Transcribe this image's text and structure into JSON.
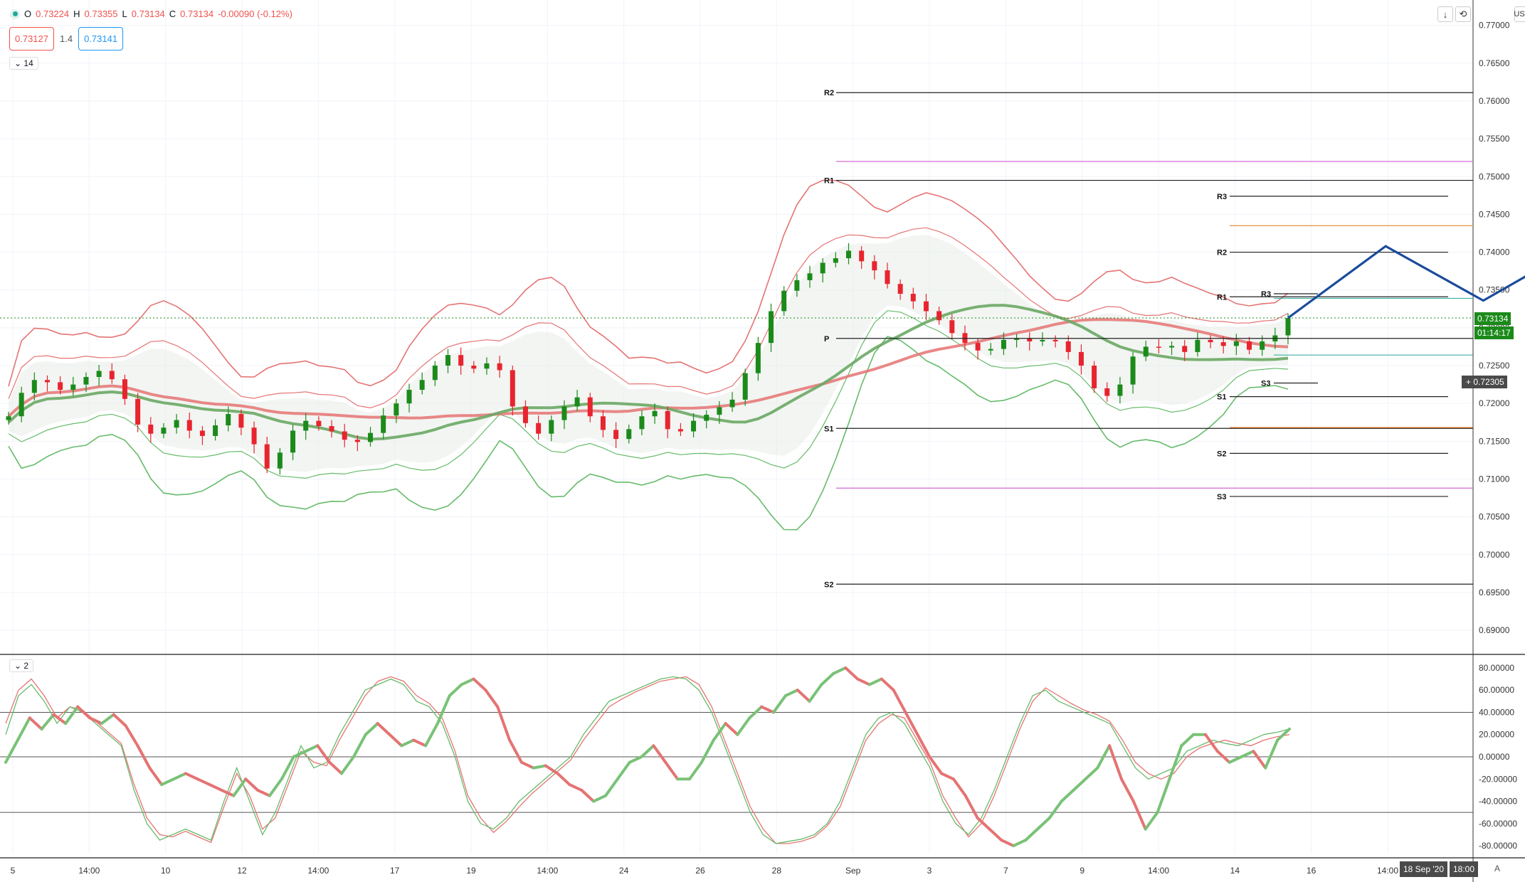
{
  "header": {
    "symbol_dot": "status-dot",
    "open_label": "O",
    "open": "0.73224",
    "high_label": "H",
    "high": "0.73355",
    "low_label": "L",
    "low": "0.73134",
    "close_label": "C",
    "close": "0.73134",
    "change": "-0.00090 (-0.12%)",
    "sell_price": "0.73127",
    "spread": "1.4",
    "buy_price": "0.73141",
    "main_collapse_label": "14",
    "osc_collapse_label": "2",
    "currency": "USD"
  },
  "price_labels": {
    "last_price": "0.73134",
    "countdown": "01:14:17",
    "crosshair_price": "0.72305"
  },
  "bottom_tags": {
    "date": "18 Sep '20",
    "time": "18:00",
    "auto": "A"
  },
  "colors": {
    "up": "#1b8a1b",
    "down": "#e8242f",
    "band_red": "#e57373",
    "band_green": "#66bb6a",
    "ma_red": "#e57373",
    "ma_green": "#6aa964",
    "projection": "#1a4b9c"
  },
  "chart_data": {
    "type": "candlestick",
    "price_axis": {
      "min": 0.687,
      "max": 0.771,
      "ticks": [
        "0.77000",
        "0.76500",
        "0.76000",
        "0.75500",
        "0.75000",
        "0.74500",
        "0.74000",
        "0.73500",
        "0.73000",
        "0.72500",
        "0.72000",
        "0.71500",
        "0.71000",
        "0.70500",
        "0.70000",
        "0.69500",
        "0.69000"
      ]
    },
    "time_axis": {
      "labels": [
        "5",
        "14:00",
        "10",
        "12",
        "14:00",
        "17",
        "19",
        "14:00",
        "24",
        "26",
        "28",
        "Sep",
        "3",
        "7",
        "9",
        "14:00",
        "14",
        "16",
        "14:00"
      ]
    },
    "close_path": [
      0.7183,
      0.7214,
      0.7231,
      0.7228,
      0.7218,
      0.7225,
      0.7235,
      0.7243,
      0.7232,
      0.7206,
      0.7172,
      0.716,
      0.7168,
      0.7178,
      0.7164,
      0.7157,
      0.7171,
      0.7186,
      0.7168,
      0.7146,
      0.7114,
      0.7135,
      0.7164,
      0.7177,
      0.717,
      0.7163,
      0.7152,
      0.7149,
      0.7161,
      0.7184,
      0.72,
      0.7218,
      0.7231,
      0.725,
      0.7264,
      0.725,
      0.7246,
      0.7253,
      0.7244,
      0.7196,
      0.7174,
      0.716,
      0.7178,
      0.7196,
      0.7208,
      0.7183,
      0.7165,
      0.7153,
      0.7166,
      0.7183,
      0.719,
      0.7166,
      0.7163,
      0.7177,
      0.7185,
      0.7195,
      0.7205,
      0.724,
      0.728,
      0.7322,
      0.7349,
      0.7363,
      0.7372,
      0.7386,
      0.7392,
      0.7402,
      0.7388,
      0.7376,
      0.7358,
      0.7345,
      0.7335,
      0.7322,
      0.731,
      0.7293,
      0.728,
      0.727,
      0.7272,
      0.7284,
      0.7286,
      0.7282,
      0.7284,
      0.7282,
      0.7268,
      0.725,
      0.722,
      0.721,
      0.7225,
      0.7262,
      0.7275,
      0.7274,
      0.7276,
      0.7268,
      0.7284,
      0.7281,
      0.7276,
      0.7282,
      0.7271,
      0.7282,
      0.729,
      0.7313
    ],
    "pivots_left": [
      {
        "label": "R2",
        "value": 0.7611
      },
      {
        "label": "R1",
        "value": 0.7495
      },
      {
        "label": "P",
        "value": 0.7286
      },
      {
        "label": "S1",
        "value": 0.7167
      },
      {
        "label": "S2",
        "value": 0.6961
      }
    ],
    "pivots_right": [
      {
        "label": "R3",
        "value": 0.7474
      },
      {
        "label": "R2",
        "value": 0.74
      },
      {
        "label": "R1",
        "value": 0.7341
      },
      {
        "label": "R3",
        "value": 0.7345
      },
      {
        "label": "S3",
        "value": 0.7227
      },
      {
        "label": "S1",
        "value": 0.7209
      },
      {
        "label": "S2",
        "value": 0.7134
      },
      {
        "label": "S3",
        "value": 0.7077
      }
    ],
    "projection": [
      [
        0.7313,
        0
      ],
      [
        0.7408,
        14
      ],
      [
        0.7336,
        28
      ],
      [
        0.7494,
        58
      ]
    ],
    "oscillator": {
      "min": -87,
      "max": 87,
      "ticks": [
        "80.00000",
        "60.00000",
        "40.00000",
        "20.00000",
        "0.00000",
        "-20.00000",
        "-40.00000",
        "-60.00000",
        "-80.00000"
      ],
      "levels": [
        40,
        0,
        -50
      ],
      "slow": [
        -5,
        15,
        35,
        25,
        38,
        30,
        45,
        35,
        30,
        38,
        28,
        10,
        -10,
        -25,
        -20,
        -15,
        -20,
        -25,
        -30,
        -35,
        -20,
        -30,
        -35,
        -20,
        0,
        5,
        10,
        -5,
        -15,
        0,
        20,
        30,
        20,
        10,
        15,
        10,
        30,
        55,
        65,
        70,
        60,
        45,
        15,
        -5,
        -10,
        -8,
        -15,
        -25,
        -30,
        -40,
        -35,
        -20,
        -5,
        0,
        10,
        -5,
        -20,
        -20,
        -5,
        15,
        30,
        20,
        35,
        45,
        40,
        55,
        60,
        50,
        65,
        75,
        80,
        70,
        65,
        70,
        60,
        40,
        20,
        0,
        -15,
        -20,
        -35,
        -55,
        -65,
        -75,
        -80,
        -75,
        -65,
        -55,
        -40,
        -30,
        -20,
        -10,
        10,
        -20,
        -40,
        -65,
        -50,
        -20,
        10,
        20,
        20,
        5,
        -5,
        0,
        5,
        -10,
        15,
        25
      ],
      "fast_green": [
        20,
        55,
        65,
        50,
        30,
        45,
        40,
        30,
        20,
        10,
        -30,
        -60,
        -75,
        -70,
        -65,
        -70,
        -75,
        -40,
        -10,
        -40,
        -70,
        -50,
        -20,
        10,
        -10,
        -5,
        20,
        40,
        60,
        65,
        70,
        65,
        50,
        45,
        30,
        0,
        -40,
        -60,
        -65,
        -55,
        -40,
        -30,
        -20,
        -10,
        0,
        20,
        35,
        50,
        55,
        60,
        65,
        70,
        72,
        70,
        60,
        40,
        10,
        -20,
        -50,
        -70,
        -78,
        -76,
        -74,
        -70,
        -60,
        -40,
        -10,
        20,
        35,
        40,
        30,
        10,
        -10,
        -40,
        -60,
        -70,
        -55,
        -30,
        0,
        30,
        55,
        60,
        50,
        45,
        40,
        35,
        30,
        10,
        -10,
        -20,
        -15,
        -10,
        5,
        10,
        15,
        12,
        10,
        15,
        20,
        22,
        25
      ],
      "fast_red": [
        30,
        60,
        70,
        55,
        35,
        45,
        42,
        32,
        22,
        12,
        -25,
        -55,
        -70,
        -72,
        -67,
        -72,
        -77,
        -45,
        -15,
        -35,
        -65,
        -55,
        -25,
        5,
        -5,
        -8,
        15,
        35,
        55,
        68,
        72,
        68,
        55,
        48,
        35,
        5,
        -35,
        -55,
        -68,
        -58,
        -45,
        -33,
        -23,
        -13,
        -3,
        15,
        30,
        45,
        52,
        58,
        63,
        68,
        70,
        72,
        65,
        45,
        15,
        -15,
        -45,
        -65,
        -78,
        -78,
        -76,
        -72,
        -62,
        -45,
        -15,
        15,
        30,
        38,
        35,
        15,
        -5,
        -35,
        -55,
        -72,
        -60,
        -35,
        -5,
        25,
        50,
        62,
        55,
        48,
        42,
        38,
        32,
        15,
        -5,
        -15,
        -20,
        -15,
        0,
        8,
        12,
        15,
        12,
        10,
        15,
        18,
        20
      ]
    }
  }
}
